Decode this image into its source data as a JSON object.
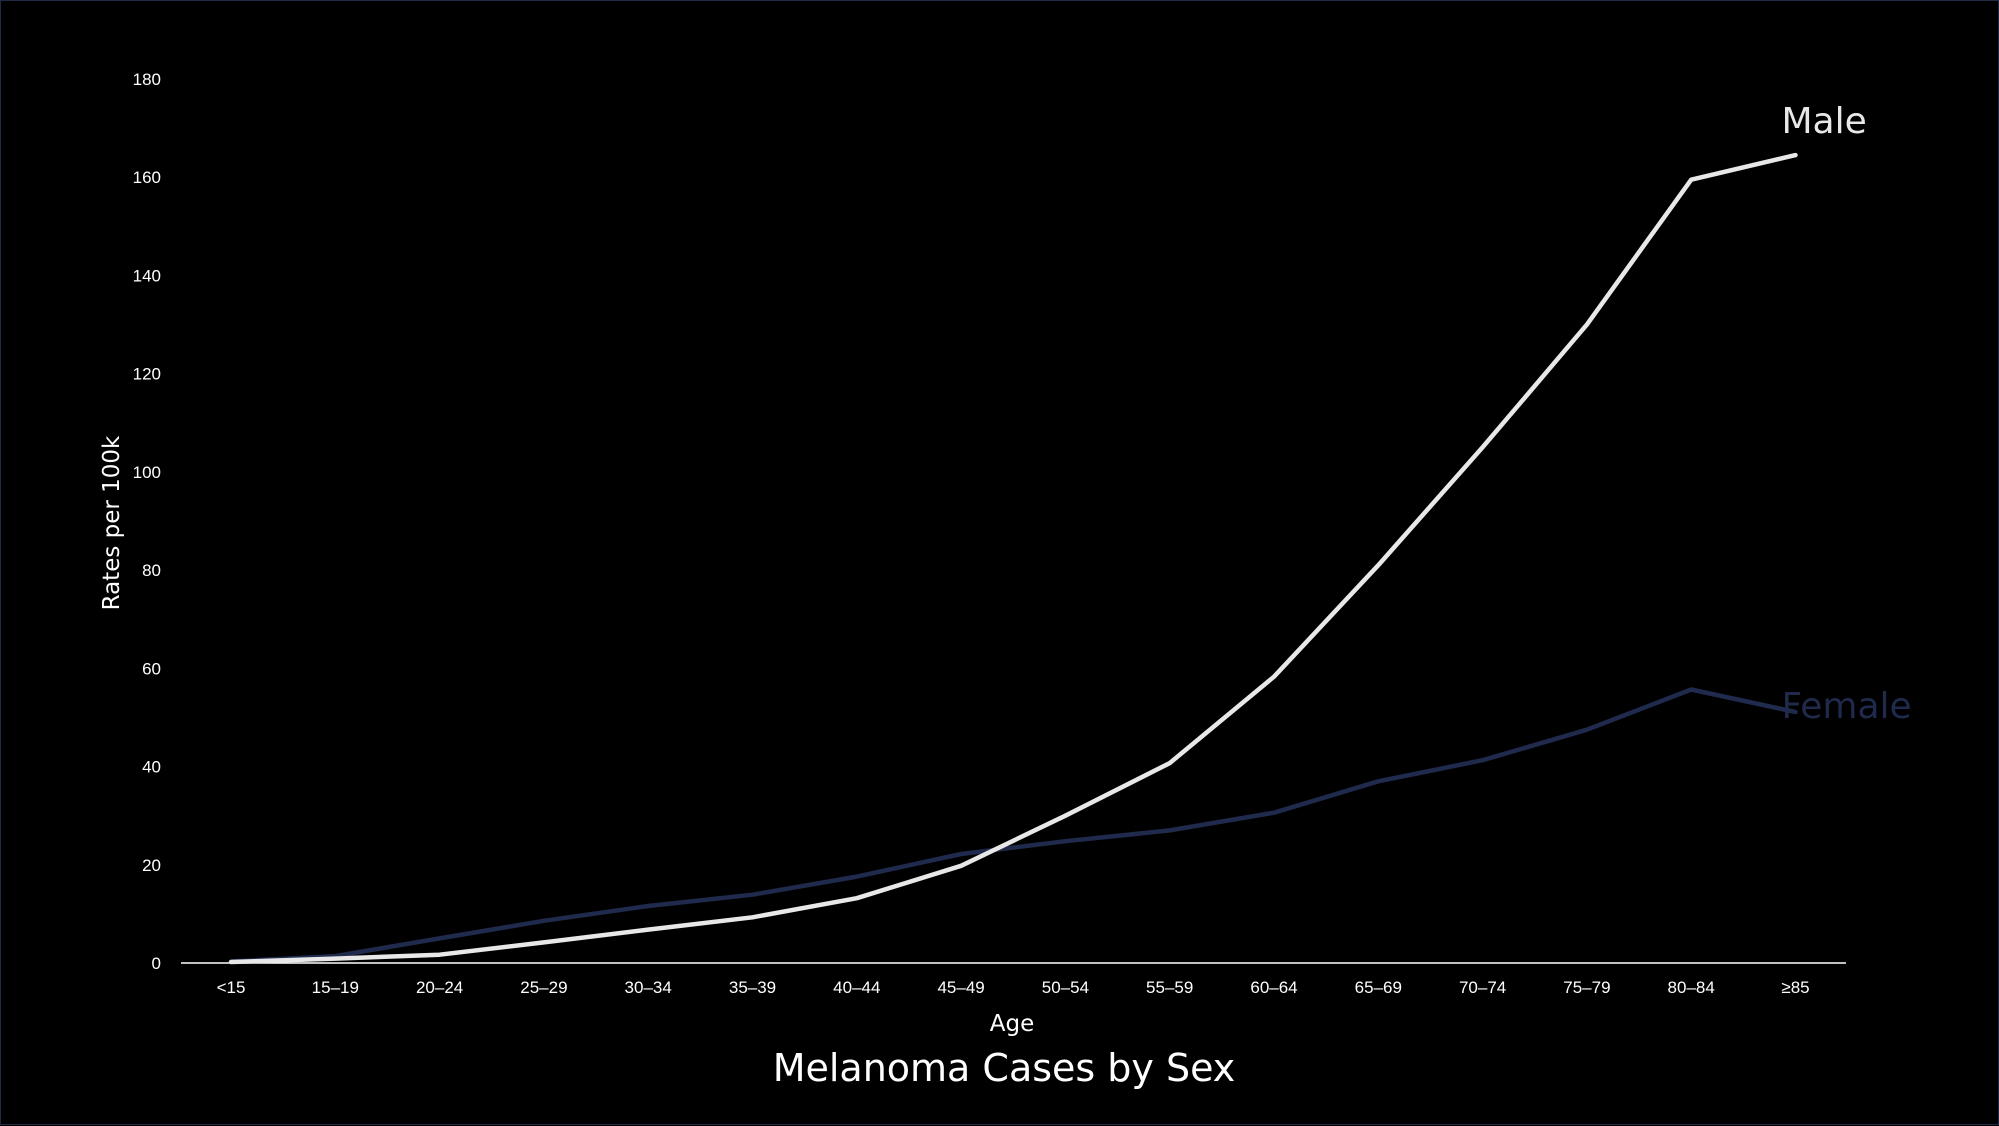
{
  "chart_data": {
    "type": "line",
    "title": "Melanoma Cases by Sex",
    "xlabel": "Age",
    "ylabel": "Rates per 100k",
    "categories": [
      "<15",
      "15–19",
      "20–24",
      "25–29",
      "30–34",
      "35–39",
      "40–44",
      "45–49",
      "50–54",
      "55–59",
      "60–64",
      "65–69",
      "70–74",
      "75–79",
      "80–84",
      "≥85"
    ],
    "ylim": [
      0,
      180
    ],
    "yticks": [
      0,
      20,
      40,
      60,
      80,
      100,
      120,
      140,
      160,
      180
    ],
    "grid": false,
    "legend": "direct labels at line ends",
    "series": [
      {
        "name": "Male",
        "color": "#e8e8e8",
        "values": [
          0.2,
          0.9,
          1.7,
          4.2,
          6.8,
          9.3,
          13.2,
          19.8,
          30.0,
          40.7,
          58.3,
          81.0,
          105.0,
          130.0,
          159.5,
          164.5
        ]
      },
      {
        "name": "Female",
        "color": "#1f2a4c",
        "values": [
          0.3,
          1.4,
          5.0,
          8.6,
          11.6,
          13.9,
          17.6,
          22.2,
          24.8,
          27.0,
          30.6,
          37.0,
          41.3,
          47.5,
          55.7,
          51.1
        ]
      }
    ]
  }
}
